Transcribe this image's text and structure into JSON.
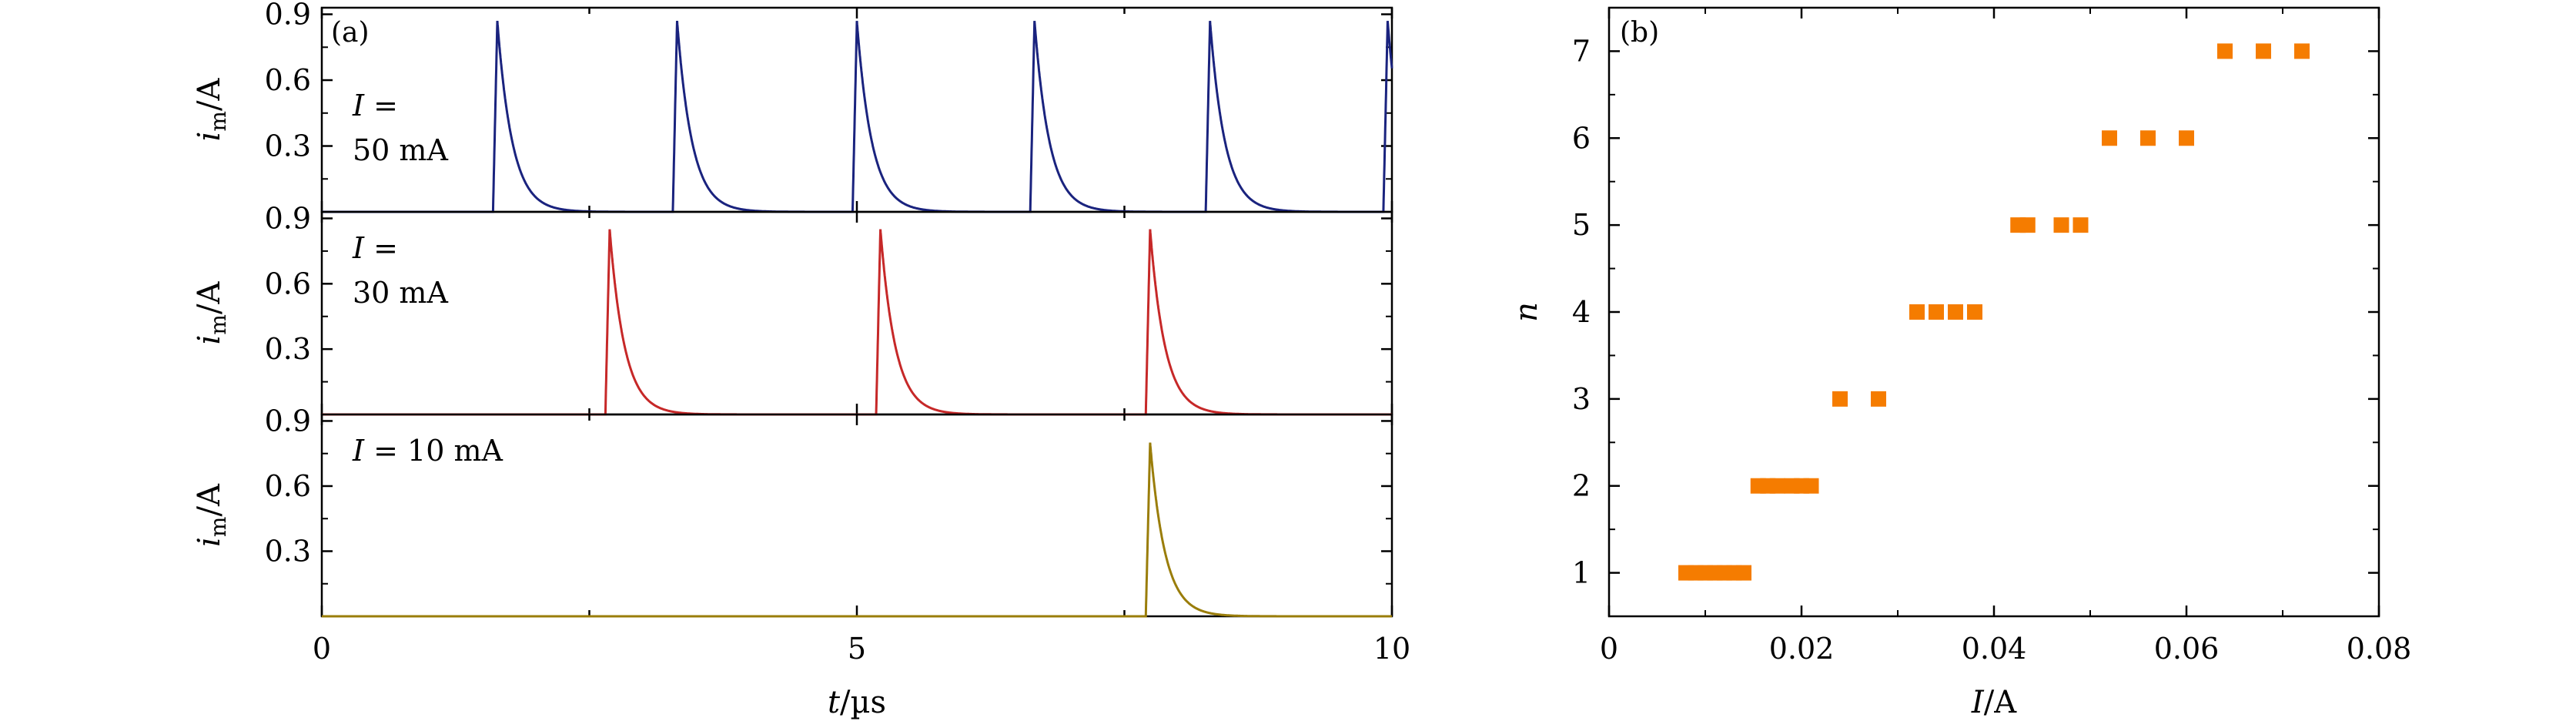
{
  "chart_data": [
    {
      "type": "line",
      "panel_label": "(a)",
      "xlabel_italic": "t",
      "xlabel_unit": "/µs",
      "ylabel_main": "i",
      "ylabel_sub": "m",
      "ylabel_unit": "/A",
      "xlim": [
        0,
        10
      ],
      "x_ticks": [
        "0",
        "5",
        "10"
      ],
      "ylim": [
        0,
        0.93
      ],
      "y_ticks": [
        "0.3",
        "0.6",
        "0.9"
      ],
      "pulse": {
        "peak": 0.87,
        "rise_us": 0.04,
        "decay_us": 0.14
      },
      "subplots": [
        {
          "name": "I = 50 mA",
          "label_lines": [
            "I =",
            "50 mA"
          ],
          "color": "#1a237e",
          "peak": 0.87,
          "spike_times": [
            1.6,
            3.28,
            4.96,
            6.62,
            8.26,
            9.92
          ]
        },
        {
          "name": "I = 30 mA",
          "label_lines": [
            "I =",
            "30 mA"
          ],
          "color": "#c62828",
          "peak": 0.85,
          "spike_times": [
            2.65,
            5.18,
            7.7
          ]
        },
        {
          "name": "I = 10 mA",
          "label_lines": [
            "I = 10 mA"
          ],
          "color": "#9a7d0a",
          "peak": 0.8,
          "spike_times": [
            7.7
          ]
        }
      ]
    },
    {
      "type": "scatter",
      "panel_label": "(b)",
      "xlabel_italic": "I",
      "xlabel_unit": "/A",
      "ylabel": "n",
      "xlim": [
        0,
        0.08
      ],
      "x_ticks": [
        0,
        0.02,
        0.04,
        0.06,
        0.08
      ],
      "x_tick_labels": [
        "0",
        "0.02",
        "0.04",
        "0.06",
        "0.08"
      ],
      "ylim": [
        0.5,
        7.5
      ],
      "y_ticks": [
        1,
        2,
        3,
        4,
        5,
        6,
        7
      ],
      "y_tick_labels": [
        "1",
        "2",
        "3",
        "4",
        "5",
        "6",
        "7"
      ],
      "marker_color": "#f57c00",
      "points": [
        {
          "x": 0.008,
          "y": 1
        },
        {
          "x": 0.009,
          "y": 1
        },
        {
          "x": 0.01,
          "y": 1
        },
        {
          "x": 0.011,
          "y": 1
        },
        {
          "x": 0.012,
          "y": 1
        },
        {
          "x": 0.013,
          "y": 1
        },
        {
          "x": 0.014,
          "y": 1
        },
        {
          "x": 0.0155,
          "y": 2
        },
        {
          "x": 0.0165,
          "y": 2
        },
        {
          "x": 0.0175,
          "y": 2
        },
        {
          "x": 0.019,
          "y": 2
        },
        {
          "x": 0.02,
          "y": 2
        },
        {
          "x": 0.021,
          "y": 2
        },
        {
          "x": 0.024,
          "y": 3
        },
        {
          "x": 0.028,
          "y": 3
        },
        {
          "x": 0.032,
          "y": 4
        },
        {
          "x": 0.034,
          "y": 4
        },
        {
          "x": 0.036,
          "y": 4
        },
        {
          "x": 0.038,
          "y": 4
        },
        {
          "x": 0.0425,
          "y": 5
        },
        {
          "x": 0.0435,
          "y": 5
        },
        {
          "x": 0.047,
          "y": 5
        },
        {
          "x": 0.049,
          "y": 5
        },
        {
          "x": 0.052,
          "y": 6
        },
        {
          "x": 0.056,
          "y": 6
        },
        {
          "x": 0.06,
          "y": 6
        },
        {
          "x": 0.064,
          "y": 7
        },
        {
          "x": 0.068,
          "y": 7
        },
        {
          "x": 0.072,
          "y": 7
        }
      ]
    }
  ]
}
